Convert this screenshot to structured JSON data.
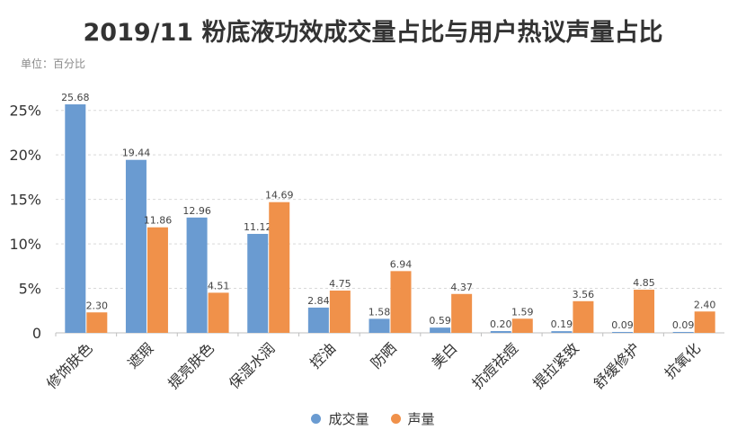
{
  "title": "2019/11 粉底液功效成交量占比与用户热议声量占比",
  "unit_label": "单位：百分比",
  "colors": {
    "series1": "#6a9bd1",
    "series2": "#f0914a",
    "grid": "#d9d9d9",
    "axis": "#bfbfbf"
  },
  "chart_data": {
    "type": "bar",
    "categories": [
      "修饰肤色",
      "遮瑕",
      "提亮肤色",
      "保湿水润",
      "控油",
      "防晒",
      "美白",
      "抗痘祛痘",
      "提拉紧致",
      "舒缓修护",
      "抗氧化"
    ],
    "series": [
      {
        "name": "成交量",
        "values": [
          25.68,
          19.44,
          12.96,
          11.12,
          2.84,
          1.58,
          0.59,
          0.2,
          0.19,
          0.09,
          0.09
        ],
        "labels": [
          "25.68",
          "19.44",
          "12.96",
          "11.12",
          "2.84",
          "1.58",
          "0.59",
          "0.20",
          "0.19",
          "0.09",
          "0.09"
        ]
      },
      {
        "name": "声量",
        "values": [
          2.3,
          11.86,
          4.51,
          14.69,
          4.75,
          6.94,
          4.37,
          1.59,
          3.56,
          4.85,
          2.4
        ],
        "labels": [
          "2.30",
          "11.86",
          "4.51",
          "14.69",
          "4.75",
          "6.94",
          "4.37",
          "1.59",
          "3.56",
          "4.85",
          "2.40"
        ]
      }
    ],
    "yticks": [
      0,
      5,
      10,
      15,
      20,
      25
    ],
    "ytick_labels": [
      "0",
      "5%",
      "10%",
      "15%",
      "20%",
      "25%"
    ],
    "ylim": [
      0,
      25.68
    ],
    "grid": true,
    "legend": "bottom"
  }
}
